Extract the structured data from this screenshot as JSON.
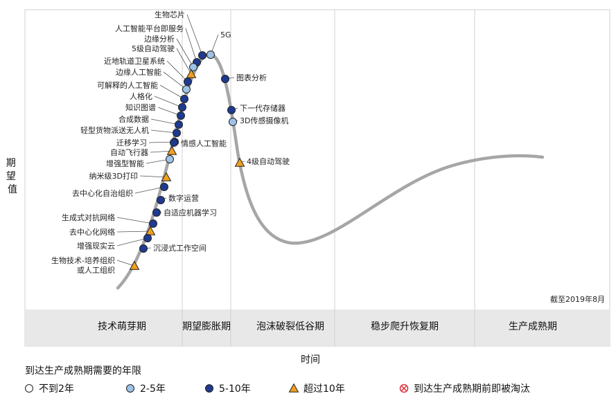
{
  "chart_data": {
    "type": "scatter",
    "ylabel": "期望值",
    "xlabel": "时间",
    "date_note": "截至2019年8月",
    "colors": {
      "curve": "#a6a6a6",
      "lt2": "#ffffff",
      "y2_5": "#9dc3e6",
      "y5_10": "#1f3b8f",
      "gt10": "#f0a020",
      "obsolete": "#e0303a",
      "phase_band": "#e8e8e8"
    },
    "phases": [
      "技术萌芽期",
      "期望膨胀期",
      "泡沫破裂低谷期",
      "稳步爬升恢复期",
      "生产成熟期"
    ],
    "legend": {
      "title": "到达生产成熟期需要的年限",
      "items": [
        {
          "key": "lt2",
          "label": "不到2年",
          "shape": "circle"
        },
        {
          "key": "y2_5",
          "label": "2-5年",
          "shape": "circle"
        },
        {
          "key": "y5_10",
          "label": "5-10年",
          "shape": "circle"
        },
        {
          "key": "gt10",
          "label": "超过10年",
          "shape": "triangle"
        },
        {
          "key": "obsolete",
          "label": "到达生产成熟期前即被淘汰",
          "shape": "crossed-circle"
        }
      ]
    },
    "points": [
      {
        "label": "生物芯片",
        "cat": "y5_10"
      },
      {
        "label": "5G",
        "cat": "y2_5"
      },
      {
        "label": "人工智能平台即服务",
        "cat": "y5_10"
      },
      {
        "label": "边缘分析",
        "cat": "y2_5"
      },
      {
        "label": "5级自动驾驶",
        "cat": "gt10"
      },
      {
        "label": "近地轨道卫星系统",
        "cat": "y5_10"
      },
      {
        "label": "边缘人工智能",
        "cat": "y2_5"
      },
      {
        "label": "可解释的人工智能",
        "cat": "y5_10"
      },
      {
        "label": "人格化",
        "cat": "y5_10"
      },
      {
        "label": "知识图谱",
        "cat": "y5_10"
      },
      {
        "label": "合成数据",
        "cat": "y5_10"
      },
      {
        "label": "轻型货物派送无人机",
        "cat": "y5_10"
      },
      {
        "label": "迁移学习",
        "cat": "y5_10"
      },
      {
        "label": "自动飞行器",
        "cat": "gt10"
      },
      {
        "label": "增强型智能",
        "cat": "y2_5"
      },
      {
        "label": "情感人工智能",
        "cat": "y5_10"
      },
      {
        "label": "纳米级3D打印",
        "cat": "gt10"
      },
      {
        "label": "去中心化自治组织",
        "cat": "y5_10"
      },
      {
        "label": "数字运营",
        "cat": "y5_10"
      },
      {
        "label": "自适应机器学习",
        "cat": "y5_10"
      },
      {
        "label": "生成式对抗网络",
        "cat": "y5_10"
      },
      {
        "label": "去中心化网络",
        "cat": "gt10"
      },
      {
        "label": "增强现实云",
        "cat": "y5_10"
      },
      {
        "label": "沉浸式工作空间",
        "cat": "y5_10"
      },
      {
        "label": "生物技术-培养组织\n或人工组织",
        "cat": "gt10"
      },
      {
        "label": "图表分析",
        "cat": "y5_10"
      },
      {
        "label": "下一代存储器",
        "cat": "y5_10"
      },
      {
        "label": "3D传感摄像机",
        "cat": "y2_5"
      },
      {
        "label": "4级自动驾驶",
        "cat": "gt10"
      }
    ]
  }
}
